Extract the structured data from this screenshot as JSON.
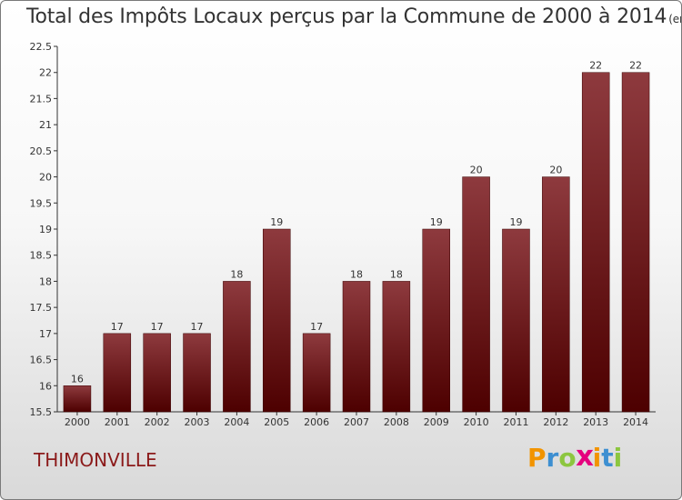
{
  "header": {
    "title": "Total des Impôts Locaux perçus par la Commune de 2000 à 2014",
    "unit": "(en milliers d'€)"
  },
  "footer": {
    "commune": "THIMONVILLE",
    "logo_letters": [
      "P",
      "r",
      "o",
      "x",
      "i",
      "t",
      "i"
    ],
    "logo_colors": [
      "#f29400",
      "#3d8fd1",
      "#8cc63f",
      "#e5007e",
      "#f29400",
      "#3d8fd1",
      "#8cc63f"
    ]
  },
  "colors": {
    "bar_top": "#8e3a3e",
    "bar_bottom": "#4d0000",
    "axis": "#333333"
  },
  "chart_data": {
    "type": "bar",
    "title": "Total des Impôts Locaux perçus par la Commune de 2000 à 2014",
    "xlabel": "",
    "ylabel": "(en milliers d'€)",
    "categories": [
      "2000",
      "2001",
      "2002",
      "2003",
      "2004",
      "2005",
      "2006",
      "2007",
      "2008",
      "2009",
      "2010",
      "2011",
      "2012",
      "2013",
      "2014"
    ],
    "values": [
      16,
      17,
      17,
      17,
      18,
      19,
      17,
      18,
      18,
      19,
      20,
      19,
      20,
      22,
      22
    ],
    "value_labels": [
      "16",
      "17",
      "17",
      "17",
      "18",
      "19",
      "17",
      "18",
      "18",
      "19",
      "20",
      "19",
      "20",
      "22",
      "22"
    ],
    "ylim": [
      15.5,
      22.5
    ],
    "yticks": [
      15.5,
      16,
      16.5,
      17,
      17.5,
      18,
      18.5,
      19,
      19.5,
      20,
      20.5,
      21,
      21.5,
      22,
      22.5
    ],
    "ytick_labels": [
      "15.5",
      "16",
      "16.5",
      "17",
      "17.5",
      "18",
      "18.5",
      "19",
      "19.5",
      "20",
      "20.5",
      "21",
      "21.5",
      "22",
      "22.5"
    ],
    "grid": false,
    "legend": "none"
  }
}
